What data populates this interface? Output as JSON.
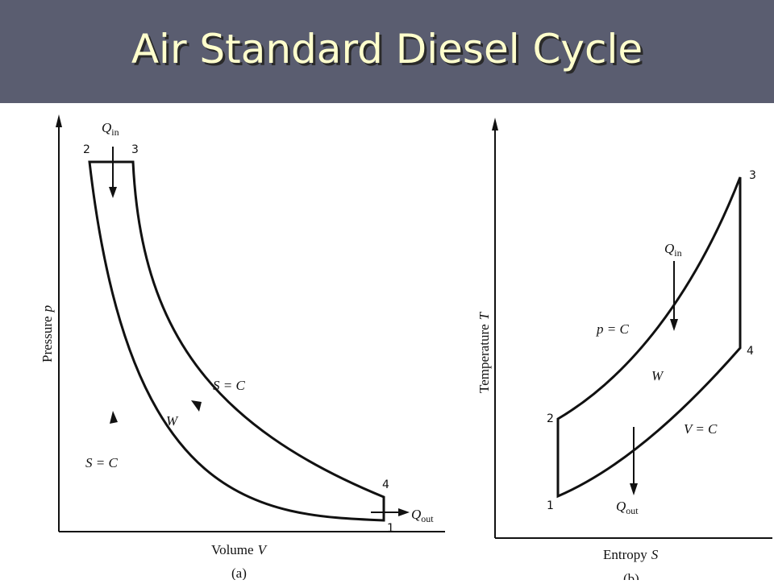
{
  "slide": {
    "title": "Air Standard Diesel Cycle"
  },
  "pv_diagram": {
    "x_axis_label": "Volume",
    "x_axis_symbol": "V",
    "y_axis_label": "Pressure",
    "y_axis_symbol": "p",
    "caption": "(a)",
    "state_labels": [
      "1",
      "2",
      "3",
      "4"
    ],
    "q_in": {
      "symbol": "Q",
      "sub": "in"
    },
    "q_out": {
      "symbol": "Q",
      "sub": "out"
    },
    "process_top": "S = C",
    "process_left": "S = C",
    "work": "W"
  },
  "ts_diagram": {
    "x_axis_label": "Entropy",
    "x_axis_symbol": "S",
    "y_axis_label": "Temperature",
    "y_axis_symbol": "T",
    "caption": "(b)",
    "state_labels": [
      "1",
      "2",
      "3",
      "4"
    ],
    "q_in": {
      "symbol": "Q",
      "sub": "in"
    },
    "q_out": {
      "symbol": "Q",
      "sub": "out"
    },
    "process_top": "p = C",
    "process_bottom": "V = C",
    "work": "W"
  }
}
